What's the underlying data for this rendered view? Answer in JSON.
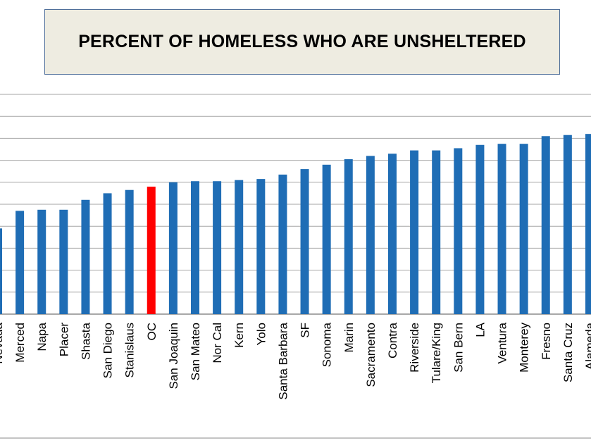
{
  "chart_data": {
    "type": "bar",
    "title": "PERCENT OF HOMELESS WHO ARE UNSHELTERED",
    "xlabel": "",
    "ylabel": "",
    "grid": true,
    "legend": "none",
    "ylim": [
      0,
      100
    ],
    "categories": [
      "Nevada",
      "Merced",
      "Napa",
      "Placer",
      "Shasta",
      "San Diego",
      "Stanislaus",
      "OC",
      "San Joaquin",
      "San Mateo",
      "Nor Cal",
      "Kern",
      "Yolo",
      "Santa Barbara",
      "SF",
      "Sonoma",
      "Marin",
      "Sacramento",
      "Contra",
      "Riverside",
      "Tulare/King",
      "San Bern",
      "LA",
      "Ventura",
      "Monterey",
      "Fresno",
      "Santa Cruz",
      "Alameda"
    ],
    "values": [
      39,
      47,
      47.5,
      47.5,
      52,
      55,
      56.5,
      58,
      60,
      60.5,
      60.5,
      61,
      61.5,
      63.5,
      66,
      68,
      70.5,
      72,
      73,
      74.5,
      74.5,
      75.5,
      77,
      77.5,
      77.5,
      81,
      81.5,
      82
    ],
    "bar_color": "#1f6db5",
    "highlight": {
      "category": "OC",
      "color": "#ff0000"
    }
  }
}
